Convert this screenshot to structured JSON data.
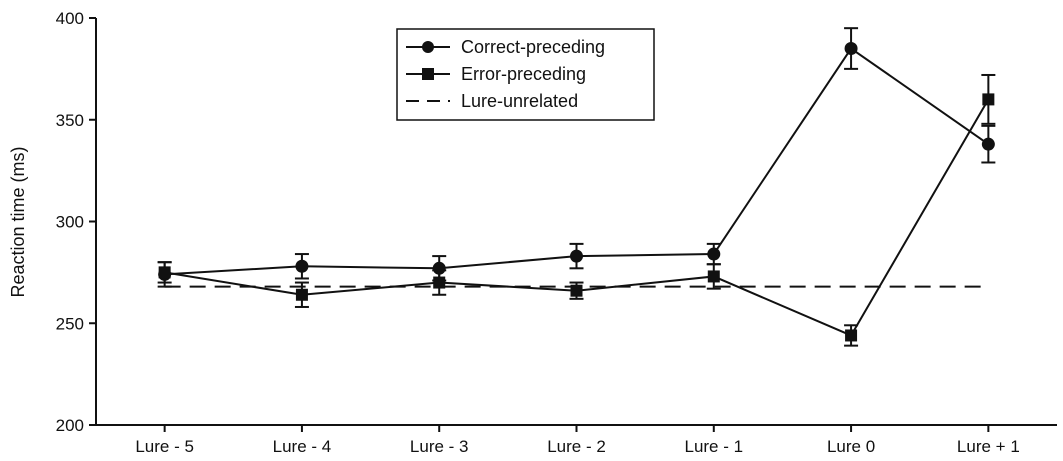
{
  "chart_data": {
    "type": "line",
    "ylabel": "Reaction time (ms)",
    "xlabel": "",
    "categories": [
      "Lure - 5",
      "Lure - 4",
      "Lure - 3",
      "Lure - 2",
      "Lure - 1",
      "Lure 0",
      "Lure + 1"
    ],
    "ylim": [
      200,
      400
    ],
    "yticks": [
      200,
      250,
      300,
      350,
      400
    ],
    "grid": false,
    "legend_position": "top-center",
    "series": [
      {
        "name": "Correct-preceding",
        "marker": "circle",
        "values": [
          274,
          278,
          277,
          283,
          284,
          385,
          338
        ],
        "error": [
          6,
          6,
          6,
          6,
          5,
          10,
          9
        ]
      },
      {
        "name": "Error-preceding",
        "marker": "square",
        "values": [
          275,
          264,
          270,
          266,
          273,
          244,
          360
        ],
        "error": [
          5,
          6,
          6,
          4,
          6,
          5,
          12
        ]
      }
    ],
    "reference_line": {
      "name": "Lure-unrelated",
      "style": "dashed",
      "value": 268
    }
  }
}
